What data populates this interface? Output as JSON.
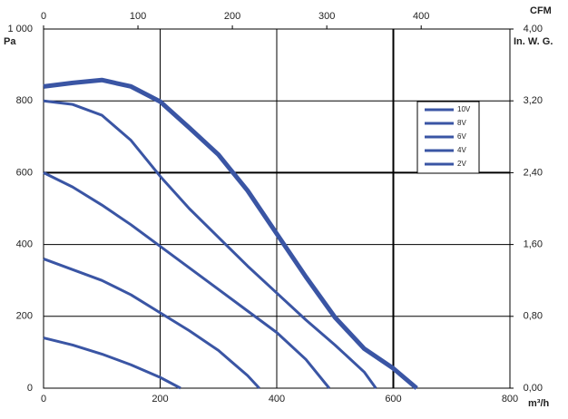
{
  "chart_data": {
    "type": "line",
    "xlabel": "m³/h",
    "ylabel": "Pa",
    "x2label": "CFM",
    "y2label": "In. W. G.",
    "xlim": [
      0,
      800
    ],
    "xticks": [
      0,
      200,
      400,
      600,
      800
    ],
    "ylim": [
      0,
      1000
    ],
    "yticks": [
      0,
      200,
      400,
      600,
      800,
      {
        "value": 1000,
        "label": "1 000"
      }
    ],
    "x2lim": [
      0,
      494
    ],
    "x2ticks": [
      0,
      100,
      200,
      300,
      400
    ],
    "y2lim": [
      0,
      4
    ],
    "y2ticks": [
      {
        "value": 0,
        "label": "0,00"
      },
      {
        "value": 0.8,
        "label": "0,80"
      },
      {
        "value": 1.6,
        "label": "1,60"
      },
      {
        "value": 2.4,
        "label": "2,40"
      },
      {
        "value": 3.2,
        "label": "3,20"
      },
      {
        "value": 4,
        "label": "4,00"
      }
    ],
    "grid": true,
    "legend": "right",
    "series": [
      {
        "name": "10V",
        "color": "#3a55a4",
        "x": [
          0,
          50,
          100,
          150,
          200,
          250,
          300,
          350,
          400,
          450,
          500,
          550,
          600,
          640
        ],
        "values": [
          840,
          850,
          858,
          840,
          798,
          725,
          650,
          550,
          430,
          310,
          197,
          110,
          55,
          0
        ]
      },
      {
        "name": "8V",
        "color": "#3a55a4",
        "x": [
          0,
          50,
          100,
          150,
          200,
          250,
          300,
          350,
          400,
          450,
          500,
          550,
          570
        ],
        "values": [
          800,
          790,
          760,
          690,
          590,
          500,
          420,
          340,
          265,
          190,
          120,
          45,
          0
        ]
      },
      {
        "name": "6V",
        "color": "#3a55a4",
        "x": [
          0,
          50,
          100,
          150,
          200,
          250,
          300,
          350,
          400,
          450,
          490
        ],
        "values": [
          600,
          560,
          510,
          455,
          395,
          335,
          275,
          215,
          155,
          80,
          0
        ]
      },
      {
        "name": "4V",
        "color": "#3a55a4",
        "x": [
          0,
          50,
          100,
          150,
          200,
          250,
          300,
          350,
          370
        ],
        "values": [
          360,
          330,
          300,
          260,
          210,
          160,
          105,
          35,
          0
        ]
      },
      {
        "name": "2V",
        "color": "#3a55a4",
        "x": [
          0,
          50,
          100,
          150,
          200,
          235
        ],
        "values": [
          140,
          120,
          95,
          65,
          30,
          0
        ]
      }
    ]
  }
}
